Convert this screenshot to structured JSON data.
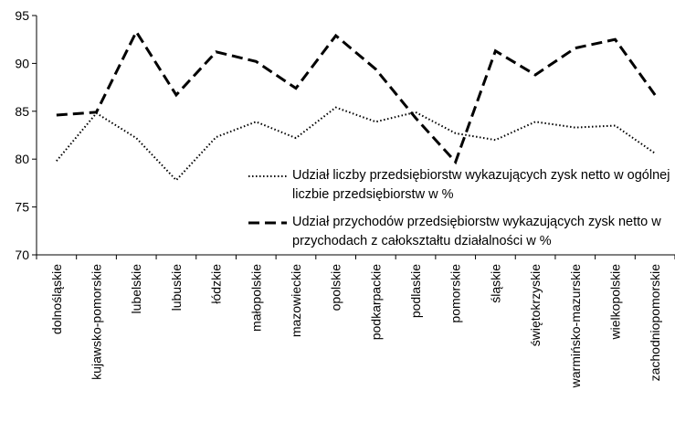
{
  "chart_data": {
    "type": "line",
    "categories": [
      "dolnośląskie",
      "kujawsko-pomorskie",
      "lubelskie",
      "lubuskie",
      "łódzkie",
      "małopolskie",
      "mazowieckie",
      "opolskie",
      "podkarpackie",
      "podlaskie",
      "pomorskie",
      "śląskie",
      "świętokrzyskie",
      "warmińsko-mazurskie",
      "wielkopolskie",
      "zachodniopomorskie"
    ],
    "series": [
      {
        "name": "Udział liczby przedsiębiorstw wykazujących zysk netto w ogólnej liczbie przedsiębiorstw w %",
        "color": "#000000",
        "dash": "dotted",
        "values": [
          79.8,
          84.8,
          82.2,
          77.8,
          82.3,
          83.9,
          82.2,
          85.4,
          83.9,
          84.9,
          82.7,
          82.0,
          83.9,
          83.3,
          83.5,
          80.6
        ]
      },
      {
        "name": "Udział przychodów przedsiębiorstw wykazujących zysk netto w przychodach z całokształtu działalności w %",
        "color": "#000000",
        "dash": "dashed",
        "values": [
          84.6,
          84.9,
          93.3,
          86.7,
          91.2,
          90.2,
          87.4,
          92.9,
          89.4,
          84.3,
          79.7,
          91.3,
          88.8,
          91.6,
          92.5,
          86.7
        ]
      }
    ],
    "ylim": [
      70,
      95
    ],
    "yticks": [
      70,
      75,
      80,
      85,
      90,
      95
    ],
    "grid": false
  }
}
